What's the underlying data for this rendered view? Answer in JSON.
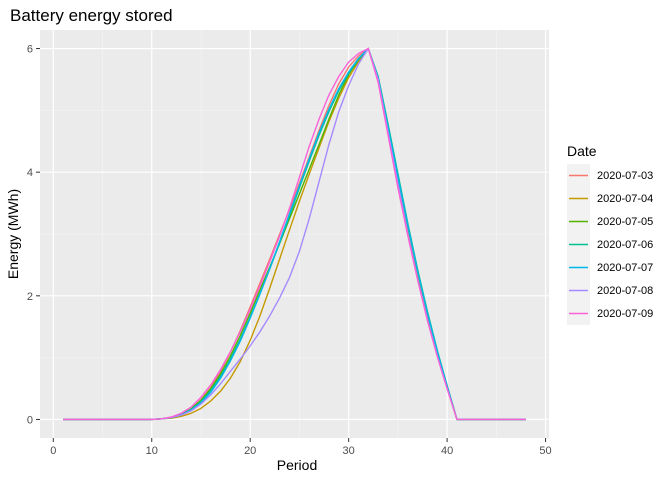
{
  "chart_data": {
    "type": "line",
    "title": "Battery energy stored",
    "xlabel": "Period",
    "ylabel": "Energy (MWh)",
    "xlim": [
      -1.35,
      50.35
    ],
    "ylim": [
      -0.3,
      6.3
    ],
    "xticks": [
      0,
      10,
      20,
      30,
      40,
      50
    ],
    "yticks": [
      0,
      2,
      4,
      6
    ],
    "grid": true,
    "legend_title": "Date",
    "legend_position": "right",
    "x": [
      1,
      2,
      3,
      4,
      5,
      6,
      7,
      8,
      9,
      10,
      11,
      12,
      13,
      14,
      15,
      16,
      17,
      18,
      19,
      20,
      21,
      22,
      23,
      24,
      25,
      26,
      27,
      28,
      29,
      30,
      31,
      32,
      33,
      34,
      35,
      36,
      37,
      38,
      39,
      40,
      41,
      42,
      43,
      44,
      45,
      46,
      47,
      48
    ],
    "series": [
      {
        "name": "2020-07-03",
        "color": "#F8766D",
        "values": [
          0,
          0,
          0,
          0,
          0,
          0,
          0,
          0,
          0,
          0,
          0.01,
          0.03,
          0.08,
          0.17,
          0.32,
          0.52,
          0.78,
          1.09,
          1.44,
          1.82,
          2.21,
          2.6,
          3.0,
          3.4,
          3.82,
          4.25,
          4.68,
          5.08,
          5.43,
          5.7,
          5.88,
          6.0,
          5.5,
          4.68,
          3.87,
          3.08,
          2.34,
          1.68,
          1.07,
          0.52,
          0.0,
          0.0,
          0.0,
          0.0,
          0.0,
          0.0,
          0.0,
          0.0
        ]
      },
      {
        "name": "2020-07-04",
        "color": "#C49A00",
        "values": [
          0,
          0,
          0,
          0,
          0,
          0,
          0,
          0,
          0,
          0,
          0.01,
          0.02,
          0.05,
          0.1,
          0.18,
          0.3,
          0.46,
          0.67,
          0.94,
          1.28,
          1.68,
          2.13,
          2.6,
          3.07,
          3.53,
          3.97,
          4.4,
          4.82,
          5.2,
          5.53,
          5.79,
          6.0,
          5.52,
          4.7,
          3.87,
          3.07,
          2.33,
          1.66,
          1.06,
          0.51,
          0.0,
          0.0,
          0.0,
          0.0,
          0.0,
          0.0,
          0.0,
          0.0
        ]
      },
      {
        "name": "2020-07-05",
        "color": "#53B400",
        "values": [
          0,
          0,
          0,
          0,
          0,
          0,
          0,
          0,
          0,
          0,
          0.01,
          0.03,
          0.08,
          0.17,
          0.31,
          0.5,
          0.74,
          1.03,
          1.36,
          1.72,
          2.1,
          2.47,
          2.85,
          3.25,
          3.65,
          4.05,
          4.45,
          4.86,
          5.25,
          5.58,
          5.82,
          6.0,
          5.5,
          4.7,
          3.92,
          3.14,
          2.4,
          1.73,
          1.1,
          0.54,
          0.0,
          0.0,
          0.0,
          0.0,
          0.0,
          0.0,
          0.0,
          0.0
        ]
      },
      {
        "name": "2020-07-06",
        "color": "#00C094",
        "values": [
          0,
          0,
          0,
          0,
          0,
          0,
          0,
          0,
          0,
          0,
          0.01,
          0.03,
          0.08,
          0.16,
          0.29,
          0.47,
          0.7,
          0.98,
          1.3,
          1.66,
          2.04,
          2.44,
          2.86,
          3.3,
          3.75,
          4.18,
          4.6,
          4.98,
          5.32,
          5.6,
          5.83,
          6.0,
          5.55,
          4.78,
          3.98,
          3.18,
          2.43,
          1.75,
          1.12,
          0.55,
          0.0,
          0.0,
          0.0,
          0.0,
          0.0,
          0.0,
          0.0,
          0.0
        ]
      },
      {
        "name": "2020-07-07",
        "color": "#00B6EB",
        "values": [
          0,
          0,
          0,
          0,
          0,
          0,
          0,
          0,
          0,
          0,
          0.01,
          0.03,
          0.07,
          0.15,
          0.27,
          0.44,
          0.67,
          0.95,
          1.27,
          1.64,
          2.03,
          2.45,
          2.88,
          3.33,
          3.78,
          4.22,
          4.64,
          5.02,
          5.35,
          5.62,
          5.84,
          6.0,
          5.52,
          4.72,
          3.93,
          3.15,
          2.4,
          1.72,
          1.1,
          0.54,
          0.0,
          0.0,
          0.0,
          0.0,
          0.0,
          0.0,
          0.0,
          0.0
        ]
      },
      {
        "name": "2020-07-08",
        "color": "#A58AFF",
        "values": [
          0,
          0,
          0,
          0,
          0,
          0,
          0,
          0,
          0,
          0,
          0.01,
          0.03,
          0.07,
          0.14,
          0.25,
          0.4,
          0.58,
          0.78,
          0.98,
          1.19,
          1.42,
          1.68,
          1.97,
          2.3,
          2.72,
          3.25,
          3.85,
          4.45,
          4.98,
          5.4,
          5.75,
          6.0,
          5.5,
          4.65,
          3.82,
          3.02,
          2.28,
          1.62,
          1.03,
          0.5,
          0.0,
          0.0,
          0.0,
          0.0,
          0.0,
          0.0,
          0.0,
          0.0
        ]
      },
      {
        "name": "2020-07-09",
        "color": "#FB61D7",
        "values": [
          0,
          0,
          0,
          0,
          0,
          0,
          0,
          0,
          0,
          0,
          0.01,
          0.04,
          0.1,
          0.2,
          0.36,
          0.56,
          0.81,
          1.1,
          1.42,
          1.78,
          2.16,
          2.56,
          2.97,
          3.42,
          3.92,
          4.42,
          4.86,
          5.25,
          5.55,
          5.78,
          5.92,
          6.0,
          5.45,
          4.6,
          3.75,
          2.98,
          2.26,
          1.6,
          1.02,
          0.5,
          0.0,
          0.0,
          0.0,
          0.0,
          0.0,
          0.0,
          0.0,
          0.0
        ]
      }
    ]
  }
}
